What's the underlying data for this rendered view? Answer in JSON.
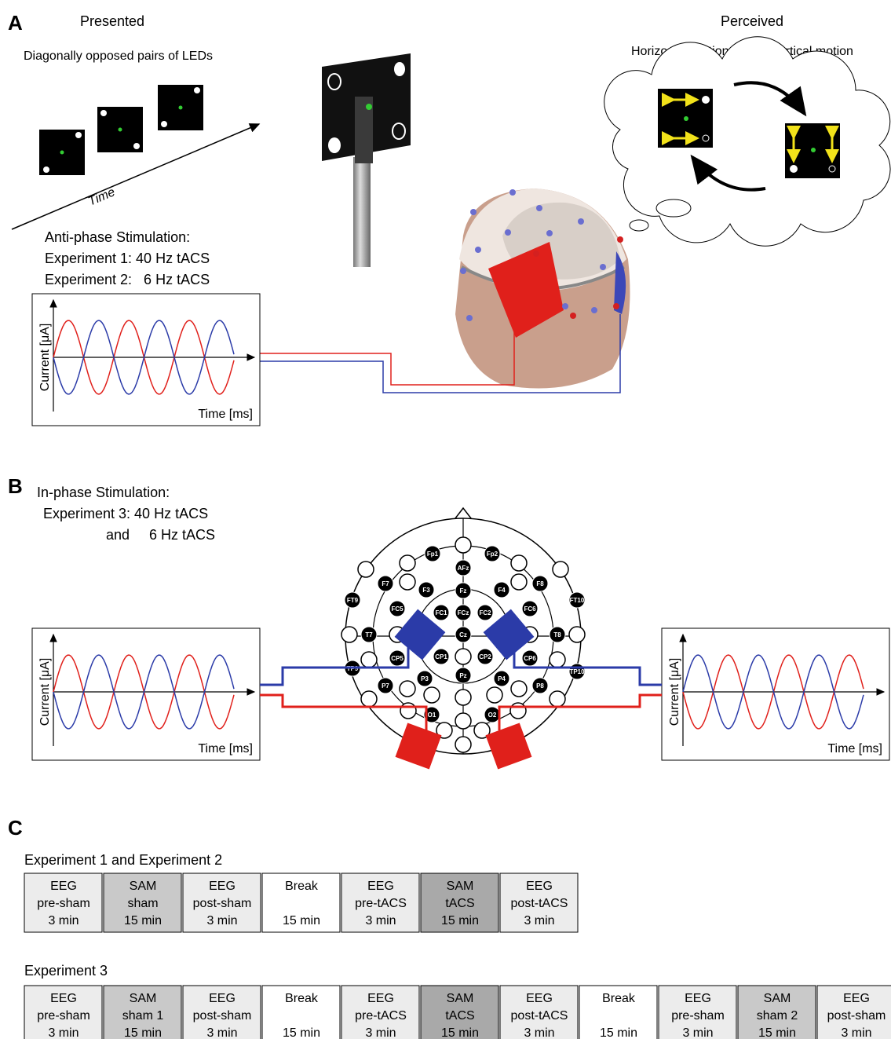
{
  "panel_a": {
    "label": "A",
    "presented": "Presented",
    "leds_caption": "Diagonally opposed pairs of LEDs",
    "time": "Time",
    "perceived": "Perceived",
    "horizontal": "Horizontal motion",
    "vertical": "Vertical motion",
    "stim_title": "Anti-phase Stimulation:",
    "exp1": "Experiment 1: 40 Hz tACS",
    "exp2": "Experiment 2:   6 Hz tACS",
    "plot": {
      "ylabel": "Current [μA]",
      "xlabel": "Time [ms]"
    }
  },
  "panel_b": {
    "label": "B",
    "stim_title": "In-phase Stimulation:",
    "exp3": "Experiment 3: 40 Hz tACS",
    "exp3b": "and     6 Hz tACS",
    "left_plot": {
      "ylabel": "Current [μA]",
      "xlabel": "Time [ms]"
    },
    "right_plot": {
      "ylabel": "Current [μA]",
      "xlabel": "Time [ms]"
    },
    "electrodes": [
      "Fp1",
      "Fp2",
      "AFz",
      "F7",
      "F3",
      "Fz",
      "F4",
      "F8",
      "FT9",
      "FC5",
      "FC1",
      "FCz",
      "FC2",
      "FC6",
      "FT10",
      "T7",
      "Cz",
      "T8",
      "CP5",
      "CP1",
      "CP2",
      "CP6",
      "TP9",
      "TP10",
      "P7",
      "P3",
      "Pz",
      "P4",
      "P8",
      "O1",
      "O2"
    ]
  },
  "panel_c": {
    "label": "C",
    "timelines": [
      {
        "title": "Experiment 1 and Experiment 2",
        "blocks": [
          {
            "lines": [
              "EEG",
              "pre-sham",
              "3 min"
            ],
            "fill": "#ececec"
          },
          {
            "lines": [
              "SAM",
              "sham",
              "15 min"
            ],
            "fill": "#c9c9c9"
          },
          {
            "lines": [
              "EEG",
              "post-sham",
              "3 min"
            ],
            "fill": "#ececec"
          },
          {
            "lines": [
              "Break",
              null,
              "15 min"
            ],
            "fill": "#ffffff"
          },
          {
            "lines": [
              "EEG",
              "pre-tACS",
              "3 min"
            ],
            "fill": "#ececec"
          },
          {
            "lines": [
              "SAM",
              "tACS",
              "15 min"
            ],
            "fill": "#a9a9a9"
          },
          {
            "lines": [
              "EEG",
              "post-tACS",
              "3 min"
            ],
            "fill": "#ececec"
          }
        ]
      },
      {
        "title": "Experiment 3",
        "blocks": [
          {
            "lines": [
              "EEG",
              "pre-sham",
              "3 min"
            ],
            "fill": "#ececec"
          },
          {
            "lines": [
              "SAM",
              "sham 1",
              "15 min"
            ],
            "fill": "#c9c9c9"
          },
          {
            "lines": [
              "EEG",
              "post-sham",
              "3 min"
            ],
            "fill": "#ececec"
          },
          {
            "lines": [
              "Break",
              null,
              "15 min"
            ],
            "fill": "#ffffff"
          },
          {
            "lines": [
              "EEG",
              "pre-tACS",
              "3 min"
            ],
            "fill": "#ececec"
          },
          {
            "lines": [
              "SAM",
              "tACS",
              "15 min"
            ],
            "fill": "#a9a9a9"
          },
          {
            "lines": [
              "EEG",
              "post-tACS",
              "3 min"
            ],
            "fill": "#ececec"
          },
          {
            "lines": [
              "Break",
              null,
              "15 min"
            ],
            "fill": "#ffffff"
          },
          {
            "lines": [
              "EEG",
              "pre-sham",
              "3 min"
            ],
            "fill": "#ececec"
          },
          {
            "lines": [
              "SAM",
              "sham 2",
              "15 min"
            ],
            "fill": "#c9c9c9"
          },
          {
            "lines": [
              "EEG",
              "post-sham",
              "3 min"
            ],
            "fill": "#ececec"
          }
        ]
      }
    ]
  }
}
